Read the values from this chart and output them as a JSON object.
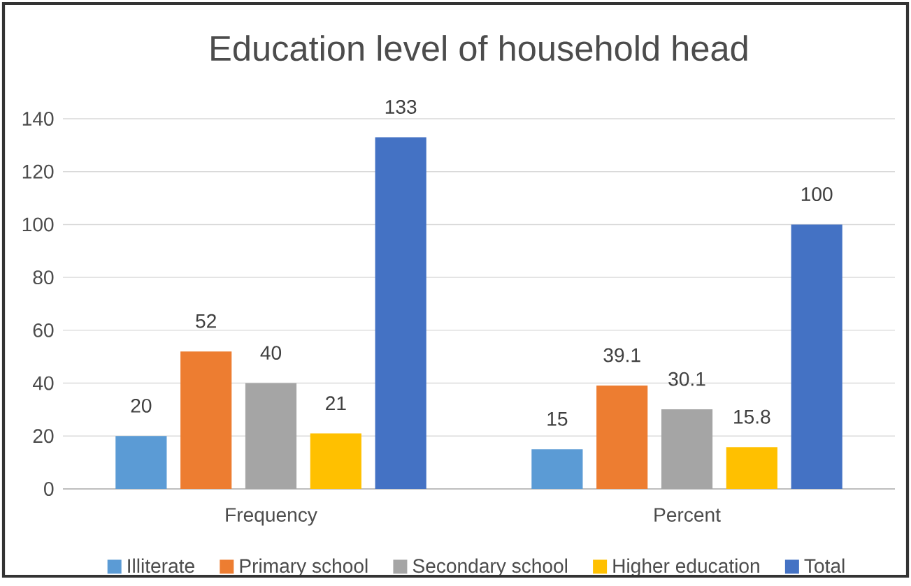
{
  "chart_data": {
    "type": "bar",
    "title": "Education level of household head",
    "categories": [
      "Frequency",
      "Percent"
    ],
    "series": [
      {
        "name": "Illiterate",
        "color": "#5b9bd5",
        "values": [
          20,
          15
        ]
      },
      {
        "name": "Primary school",
        "color": "#ed7d31",
        "values": [
          52,
          39.1
        ]
      },
      {
        "name": "Secondary school",
        "color": "#a5a5a5",
        "values": [
          40,
          30.1
        ]
      },
      {
        "name": "Higher education",
        "color": "#ffc000",
        "values": [
          21,
          15.8
        ]
      },
      {
        "name": "Total",
        "color": "#4472c4",
        "values": [
          133,
          100
        ]
      }
    ],
    "ylim": [
      0,
      140
    ],
    "yticks": [
      0,
      20,
      40,
      60,
      80,
      100,
      120,
      140
    ],
    "grid": "y",
    "legend": "bottom",
    "data_labels": true
  }
}
